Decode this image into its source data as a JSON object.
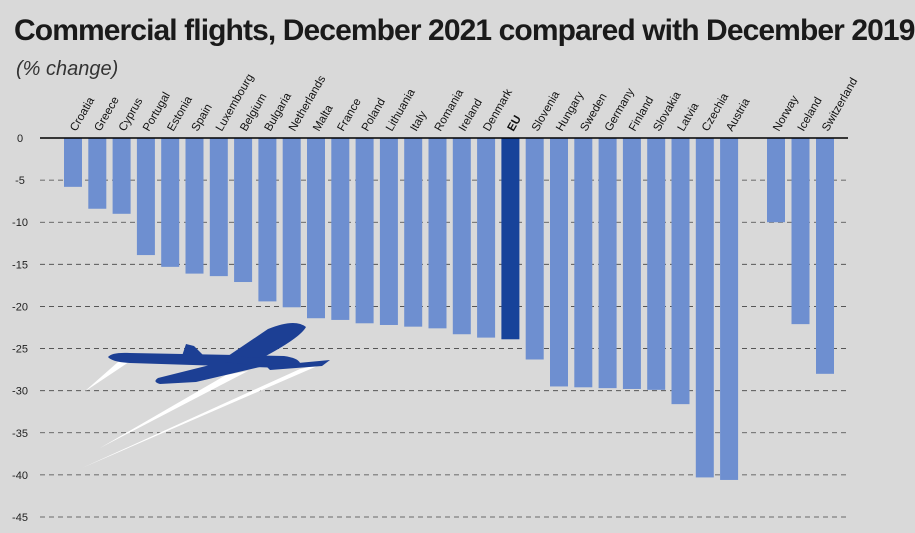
{
  "chart_data": {
    "type": "bar",
    "title": "Commercial flights, December 2021 compared with December 2019",
    "subtitle": "(% change)",
    "xlabel": "",
    "ylabel": "",
    "ylim": [
      -45,
      0
    ],
    "yticks": [
      0,
      -5,
      -10,
      -15,
      -20,
      -25,
      -30,
      -35,
      -40,
      -45
    ],
    "grid": true,
    "categories": [
      "Croatia",
      "Greece",
      "Cyprus",
      "Portugal",
      "Estonia",
      "Spain",
      "Luxembourg",
      "Belgium",
      "Bulgaria",
      "Netherlands",
      "Malta",
      "France",
      "Poland",
      "Lithuania",
      "Italy",
      "Romania",
      "Ireland",
      "Denmark",
      "EU",
      "Slovenia",
      "Hungary",
      "Sweden",
      "Germany",
      "Finland",
      "Slovakia",
      "Latvia",
      "Czechia",
      "Austria",
      "Norway",
      "Iceland",
      "Switzerland"
    ],
    "values": [
      -5.8,
      -8.4,
      -9.0,
      -13.9,
      -15.3,
      -16.1,
      -16.4,
      -17.1,
      -19.4,
      -20.1,
      -21.4,
      -21.6,
      -22.0,
      -22.2,
      -22.4,
      -22.6,
      -23.3,
      -23.7,
      -23.9,
      -26.3,
      -29.5,
      -29.6,
      -29.7,
      -29.8,
      -29.9,
      -31.6,
      -40.3,
      -40.6,
      -10.0,
      -22.1,
      -28.0
    ],
    "highlight": "EU",
    "colors": {
      "bar": "#6e8fd0",
      "highlight": "#17439a",
      "background": "#d9d9d9",
      "grid": "#444444",
      "axis": "#000000",
      "plane": "#1c3f94",
      "contrail": "#ffffff"
    }
  }
}
